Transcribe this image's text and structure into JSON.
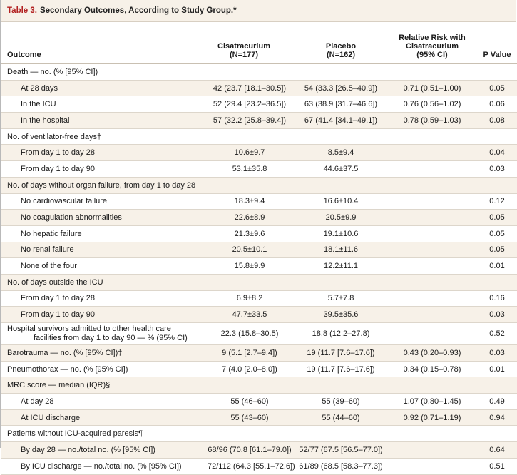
{
  "title": {
    "number": "Table 3.",
    "text": "Secondary Outcomes, According to Study Group.*"
  },
  "headers": {
    "outcome": "Outcome",
    "cis_line1": "Cisatracurium",
    "cis_line2": "(N=177)",
    "pla_line1": "Placebo",
    "pla_line2": "(N=162)",
    "rr_line1": "Relative Risk with",
    "rr_line2": "Cisatracurium",
    "rr_line3": "(95% CI)",
    "p": "P Value"
  },
  "rows": [
    {
      "label": "Death — no. (% [95% CI])",
      "indent": false,
      "cis": "",
      "pla": "",
      "rr": "",
      "p": "",
      "shade": false
    },
    {
      "label": "At 28 days",
      "indent": true,
      "cis": "42 (23.7 [18.1–30.5])",
      "pla": "54 (33.3 [26.5–40.9])",
      "rr": "0.71 (0.51–1.00)",
      "p": "0.05",
      "shade": true
    },
    {
      "label": "In the ICU",
      "indent": true,
      "cis": "52 (29.4 [23.2–36.5])",
      "pla": "63 (38.9 [31.7–46.6])",
      "rr": "0.76 (0.56–1.02)",
      "p": "0.06",
      "shade": false
    },
    {
      "label": "In the hospital",
      "indent": true,
      "cis": "57 (32.2 [25.8–39.4])",
      "pla": "67 (41.4 [34.1–49.1])",
      "rr": "0.78 (0.59–1.03)",
      "p": "0.08",
      "shade": true
    },
    {
      "label": "No. of ventilator-free days†",
      "indent": false,
      "cis": "",
      "pla": "",
      "rr": "",
      "p": "",
      "shade": false
    },
    {
      "label": "From day 1 to day 28",
      "indent": true,
      "cis": "10.6±9.7",
      "pla": "8.5±9.4",
      "rr": "",
      "p": "0.04",
      "shade": true
    },
    {
      "label": "From day 1 to day 90",
      "indent": true,
      "cis": "53.1±35.8",
      "pla": "44.6±37.5",
      "rr": "",
      "p": "0.03",
      "shade": false
    },
    {
      "label": "No. of days without organ failure, from day 1 to day 28",
      "indent": false,
      "cis": "",
      "pla": "",
      "rr": "",
      "p": "",
      "shade": true
    },
    {
      "label": "No cardiovascular failure",
      "indent": true,
      "cis": "18.3±9.4",
      "pla": "16.6±10.4",
      "rr": "",
      "p": "0.12",
      "shade": false
    },
    {
      "label": "No coagulation abnormalities",
      "indent": true,
      "cis": "22.6±8.9",
      "pla": "20.5±9.9",
      "rr": "",
      "p": "0.05",
      "shade": true
    },
    {
      "label": "No hepatic failure",
      "indent": true,
      "cis": "21.3±9.6",
      "pla": "19.1±10.6",
      "rr": "",
      "p": "0.05",
      "shade": false
    },
    {
      "label": "No renal failure",
      "indent": true,
      "cis": "20.5±10.1",
      "pla": "18.1±11.6",
      "rr": "",
      "p": "0.05",
      "shade": true
    },
    {
      "label": "None of the four",
      "indent": true,
      "cis": "15.8±9.9",
      "pla": "12.2±11.1",
      "rr": "",
      "p": "0.01",
      "shade": false
    },
    {
      "label": "No. of days outside the ICU",
      "indent": false,
      "cis": "",
      "pla": "",
      "rr": "",
      "p": "",
      "shade": true
    },
    {
      "label": "From day 1 to day 28",
      "indent": true,
      "cis": "6.9±8.2",
      "pla": "5.7±7.8",
      "rr": "",
      "p": "0.16",
      "shade": false
    },
    {
      "label": "From day 1 to day 90",
      "indent": true,
      "cis": "47.7±33.5",
      "pla": "39.5±35.6",
      "rr": "",
      "p": "0.03",
      "shade": true
    },
    {
      "label": "Hospital survivors admitted to other health care",
      "label2": "facilities from day 1 to day 90 — % (95% CI)",
      "indent": false,
      "cis": "22.3 (15.8–30.5)",
      "pla": "18.8 (12.2–27.8)",
      "rr": "",
      "p": "0.52",
      "shade": false,
      "tall": true
    },
    {
      "label": "Barotrauma — no. (% [95% CI])‡",
      "indent": false,
      "cis": "9 (5.1 [2.7–9.4])",
      "pla": "19 (11.7 [7.6–17.6])",
      "rr": "0.43 (0.20–0.93)",
      "p": "0.03",
      "shade": true
    },
    {
      "label": "Pneumothorax — no. (% [95% CI])",
      "indent": false,
      "cis": "7 (4.0 [2.0–8.0])",
      "pla": "19 (11.7 [7.6–17.6])",
      "rr": "0.34 (0.15–0.78)",
      "p": "0.01",
      "shade": false
    },
    {
      "label": "MRC score — median (IQR)§",
      "indent": false,
      "cis": "",
      "pla": "",
      "rr": "",
      "p": "",
      "shade": true
    },
    {
      "label": "At day 28",
      "indent": true,
      "cis": "55 (46–60)",
      "pla": "55 (39–60)",
      "rr": "1.07 (0.80–1.45)",
      "p": "0.49",
      "shade": false
    },
    {
      "label": "At ICU discharge",
      "indent": true,
      "cis": "55 (43–60)",
      "pla": "55 (44–60)",
      "rr": "0.92 (0.71–1.19)",
      "p": "0.94",
      "shade": true
    },
    {
      "label": "Patients without ICU-acquired paresis¶",
      "indent": false,
      "cis": "",
      "pla": "",
      "rr": "",
      "p": "",
      "shade": false
    },
    {
      "label": "By day 28 — no./total no. (% [95% CI])",
      "indent": true,
      "cis": "68/96 (70.8 [61.1–79.0])",
      "pla": "52/77 (67.5 [56.5–77.0])",
      "rr": "",
      "p": "0.64",
      "shade": true
    },
    {
      "label": "By ICU discharge — no./total no. (% [95% CI])",
      "indent": true,
      "cis": "72/112 (64.3 [55.1–72.6])",
      "pla": "61/89 (68.5 [58.3–77.3])",
      "rr": "",
      "p": "0.51",
      "shade": false
    }
  ]
}
